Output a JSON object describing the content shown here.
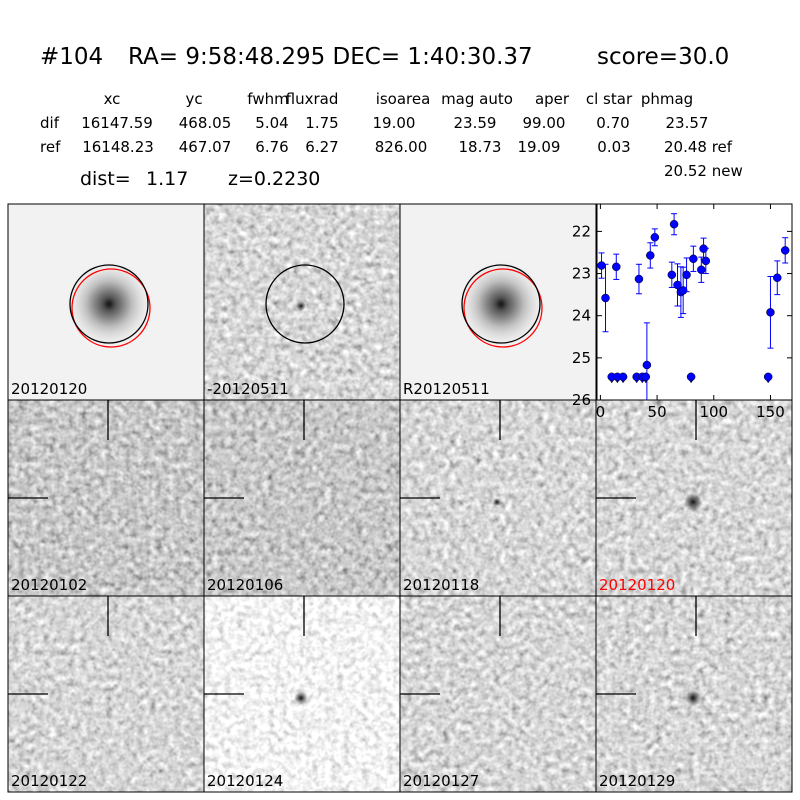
{
  "header": {
    "id": "#104",
    "coords": "RA= 9:58:48.295 DEC= 1:40:30.37",
    "score": "score=30.0"
  },
  "table": {
    "columns": [
      "xc",
      "yc",
      "fwhm",
      "fluxrad",
      "isoarea",
      "mag auto",
      "aper",
      "cl star",
      "phmag"
    ],
    "rows": [
      {
        "label": "dif",
        "cells": [
          "16147.59",
          "468.05",
          "5.04",
          "1.75",
          "19.00",
          "23.59",
          "99.00",
          "0.70",
          "23.57"
        ]
      },
      {
        "label": "ref",
        "cells": [
          "16148.23",
          "467.07",
          "6.76",
          "6.27",
          "826.00",
          "18.73",
          "19.09",
          "0.03",
          "20.48 ref"
        ]
      }
    ],
    "extra": "20.52 new"
  },
  "dist": {
    "label": "dist=",
    "value": "1.17"
  },
  "z": "z=0.2230",
  "stamps": [
    {
      "label": "20120120"
    },
    {
      "label": "-20120511"
    },
    {
      "label": "R20120511"
    },
    {
      "label": "20120102"
    },
    {
      "label": "20120106"
    },
    {
      "label": "20120118"
    },
    {
      "label": "20120120",
      "color": "#ff0000"
    },
    {
      "label": "20120122"
    },
    {
      "label": "20120124"
    },
    {
      "label": "20120127"
    },
    {
      "label": "20120129"
    }
  ],
  "chart_data": {
    "type": "errorbar-scatter",
    "xlim": [
      -3,
      169
    ],
    "ylim": [
      26,
      21.35
    ],
    "xticks": [
      0,
      50,
      100,
      150
    ],
    "yticks": [
      22,
      23,
      24,
      25,
      26
    ],
    "series": [
      {
        "color": "#0000ff",
        "marker": "circle",
        "x": [
          1,
          4.5,
          14,
          34,
          41,
          44,
          48,
          63,
          65,
          68,
          71,
          73,
          76,
          82,
          89,
          91,
          93,
          150,
          156,
          163
        ],
        "values": [
          22.81,
          23.58,
          22.84,
          23.13,
          25.17,
          22.57,
          22.14,
          23.03,
          21.83,
          23.27,
          23.44,
          23.4,
          23.03,
          22.65,
          22.91,
          22.41,
          22.7,
          23.92,
          23.1,
          22.45
        ],
        "errors": [
          0.3,
          0.8,
          0.3,
          0.35,
          1.0,
          0.3,
          0.2,
          0.3,
          0.25,
          0.5,
          0.6,
          0.55,
          0.4,
          0.3,
          0.3,
          0.25,
          0.3,
          0.85,
          0.4,
          0.3
        ]
      },
      {
        "color": "#0000ff",
        "marker": "limit",
        "x": [
          10,
          15,
          20,
          32,
          37,
          40,
          80,
          148
        ],
        "values": [
          25.45,
          25.45,
          25.45,
          25.45,
          25.45,
          25.45,
          25.45,
          25.45
        ]
      }
    ]
  }
}
